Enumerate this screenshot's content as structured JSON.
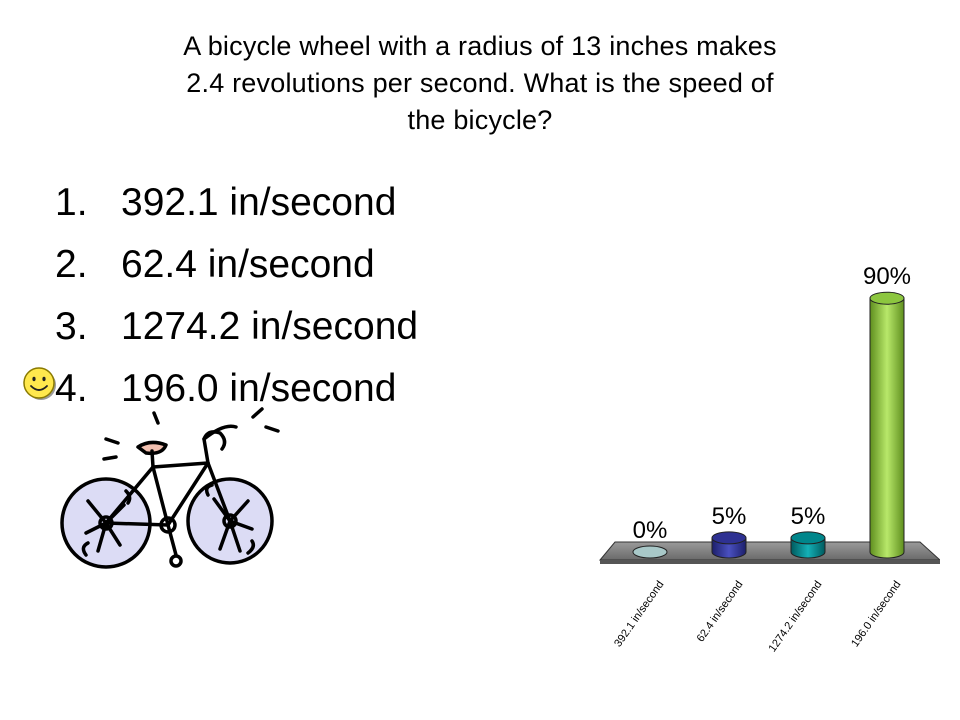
{
  "question": {
    "line1": "A bicycle wheel with a radius of 13 inches makes",
    "line2": "2.4 revolutions per second.  What is the speed of",
    "line3": "the bicycle?"
  },
  "options": [
    {
      "number": "1.",
      "text": "392.1 in/second"
    },
    {
      "number": "2.",
      "text": "62.4 in/second"
    },
    {
      "number": "3.",
      "text": "1274.2 in/second"
    },
    {
      "number": "4.",
      "text": "196.0 in/second"
    }
  ],
  "correct_option_index": 3,
  "icons": {
    "correct_marker": "smiley-face-icon",
    "illustration": "bicycle-icon"
  },
  "colors": {
    "bar_1": "#a8c8c8",
    "bar_2": "#2e3192",
    "bar_3": "#00868b",
    "bar_4": "#8cc63f",
    "platform": "#808080",
    "smiley": "#ffe84d"
  },
  "chart_data": {
    "type": "bar",
    "categories": [
      "392.1 in/second",
      "62.4 in/second",
      "1274.2 in/second",
      "196.0 in/second"
    ],
    "values": [
      0,
      5,
      5,
      90
    ],
    "data_labels": [
      "0%",
      "5%",
      "5%",
      "90%"
    ],
    "ylim": [
      0,
      100
    ],
    "title": "",
    "xlabel": "",
    "ylabel": "",
    "grid": false,
    "legend": "none",
    "style": "3d-cylinder"
  }
}
